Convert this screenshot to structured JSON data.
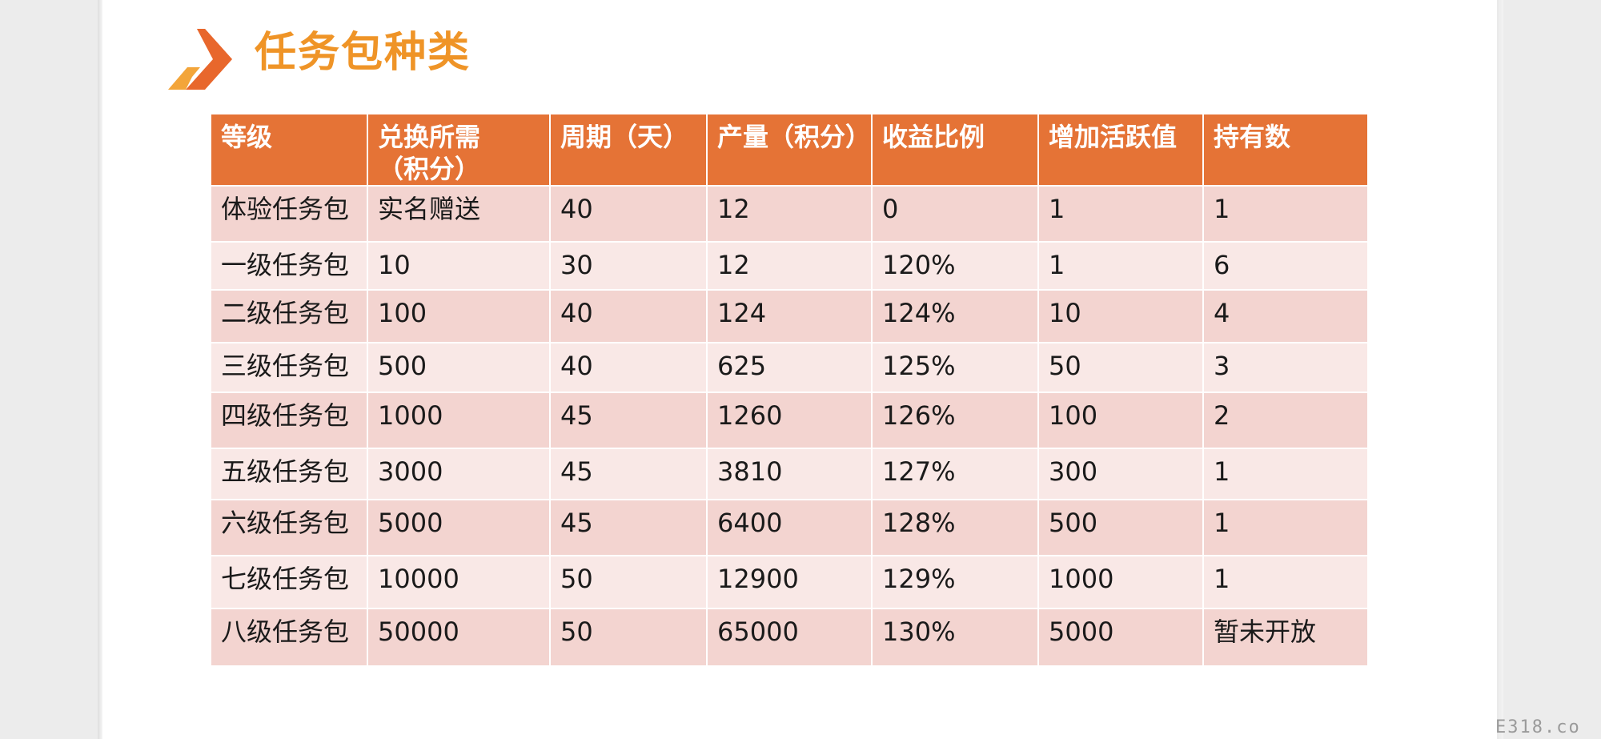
{
  "page": {
    "title": "任务包种类",
    "watermark": "E318.co"
  },
  "colors": {
    "title": "#ef9427",
    "header_bg": "#e57336",
    "row_dark": "#f3d4d0",
    "row_light": "#f9e8e6",
    "chevron_main": "#e8672c",
    "chevron_accent": "#f3a53a"
  },
  "table": {
    "headers": [
      [
        "等级"
      ],
      [
        "兑换所需",
        "（积分）"
      ],
      [
        "周期（天）"
      ],
      [
        "产量（积分）"
      ],
      [
        "收益比例"
      ],
      [
        "增加活跃值"
      ],
      [
        "持有数"
      ]
    ],
    "rows": [
      [
        "体验任务包",
        "实名赠送",
        "40",
        "12",
        "0",
        "1",
        "1"
      ],
      [
        "一级任务包",
        "10",
        "30",
        "12",
        "120%",
        "1",
        "6"
      ],
      [
        "二级任务包",
        "100",
        "40",
        "124",
        "124%",
        "10",
        "4"
      ],
      [
        "三级任务包",
        "500",
        "40",
        "625",
        "125%",
        "50",
        "3"
      ],
      [
        "四级任务包",
        "1000",
        "45",
        "1260",
        "126%",
        "100",
        "2"
      ],
      [
        "五级任务包",
        "3000",
        "45",
        "3810",
        "127%",
        "300",
        "1"
      ],
      [
        "六级任务包",
        "5000",
        "45",
        "6400",
        "128%",
        "500",
        "1"
      ],
      [
        "七级任务包",
        "10000",
        "50",
        "12900",
        "129%",
        "1000",
        "1"
      ],
      [
        "八级任务包",
        "50000",
        "50",
        "65000",
        "130%",
        "5000",
        "暂未开放"
      ]
    ]
  }
}
